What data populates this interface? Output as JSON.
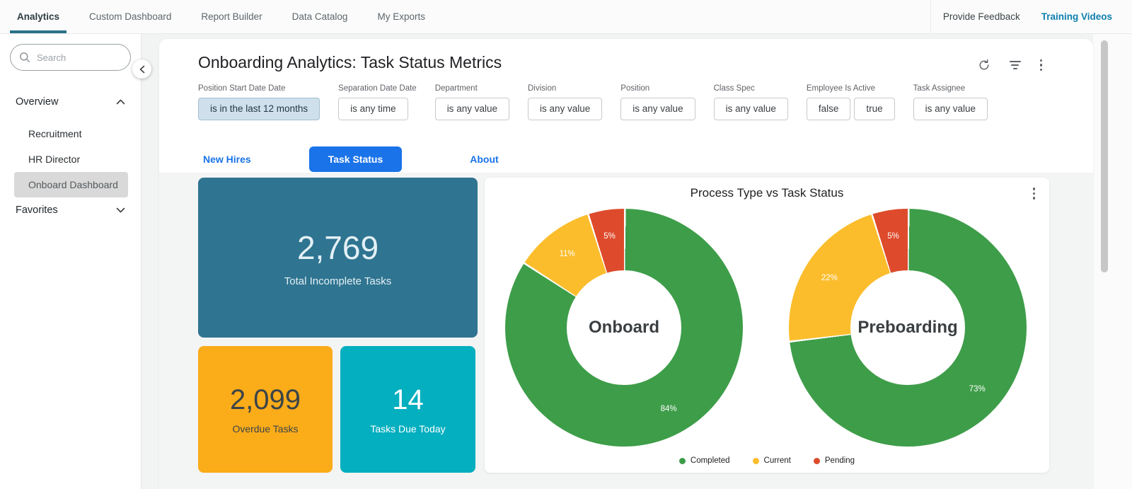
{
  "nav": {
    "tabs": [
      {
        "label": "Analytics",
        "active": true
      },
      {
        "label": "Custom Dashboard",
        "active": false
      },
      {
        "label": "Report Builder",
        "active": false
      },
      {
        "label": "Data Catalog",
        "active": false
      },
      {
        "label": "My Exports",
        "active": false
      }
    ],
    "provide_feedback": "Provide Feedback",
    "training_videos": "Training Videos"
  },
  "sidebar": {
    "search_placeholder": "Search",
    "overview_label": "Overview",
    "overview_items": [
      {
        "label": "Recruitment",
        "selected": false
      },
      {
        "label": "HR Director",
        "selected": false
      },
      {
        "label": "Onboard Dashboard",
        "selected": true
      }
    ],
    "favorites_label": "Favorites"
  },
  "main": {
    "title": "Onboarding Analytics: Task Status Metrics",
    "filters": [
      {
        "label": "Position Start Date Date",
        "value": "is in the last 12 months",
        "highlighted": true
      },
      {
        "label": "Separation Date Date",
        "value": "is any time",
        "highlighted": false
      },
      {
        "label": "Department",
        "value": "is any value",
        "highlighted": false
      },
      {
        "label": "Division",
        "value": "is any value",
        "highlighted": false
      },
      {
        "label": "Position",
        "value": "is any value",
        "highlighted": false
      },
      {
        "label": "Class Spec",
        "value": "is any value",
        "highlighted": false
      },
      {
        "label": "Employee Is Active",
        "values": [
          "false",
          "true"
        ],
        "highlighted": false
      },
      {
        "label": "Task Assignee",
        "value": "is any value",
        "highlighted": false
      }
    ],
    "view_tabs": [
      {
        "label": "New Hires",
        "active": false
      },
      {
        "label": "Task Status",
        "active": true
      },
      {
        "label": "About",
        "active": false
      }
    ],
    "metrics": [
      {
        "value": "2,769",
        "label": "Total Incomplete Tasks",
        "bg": "#2F7490",
        "text": "#E3F0F6"
      },
      {
        "value": "2,099",
        "label": "Overdue Tasks",
        "bg": "#FBAC19",
        "text": "#3C4448"
      },
      {
        "value": "14",
        "label": "Tasks Due Today",
        "bg": "#04AFBF",
        "text": "#FFFFFF"
      }
    ]
  },
  "chart_data": {
    "type": "pie",
    "title": "Process Type vs Task Status",
    "legend_position": "bottom",
    "legend": [
      {
        "label": "Completed",
        "color": "#3E9D49"
      },
      {
        "label": "Current",
        "color": "#FBBD2C"
      },
      {
        "label": "Pending",
        "color": "#DD4B2C"
      }
    ],
    "charts": [
      {
        "center_label": "Onboard",
        "slices": [
          {
            "name": "Completed",
            "value": 84
          },
          {
            "name": "Current",
            "value": 11
          },
          {
            "name": "Pending",
            "value": 5
          }
        ]
      },
      {
        "center_label": "Preboarding",
        "slices": [
          {
            "name": "Completed",
            "value": 73
          },
          {
            "name": "Current",
            "value": 22
          },
          {
            "name": "Pending",
            "value": 5
          }
        ]
      }
    ]
  },
  "icons": {
    "search": "search-icon",
    "collapse_sidebar": "chevron-left-icon",
    "overview_state": "chevron-up-icon",
    "favorites_state": "chevron-down-icon",
    "refresh": "refresh-icon",
    "filter": "filter-icon",
    "menu": "kebab-menu-icon"
  },
  "colors": {
    "accent_teal": "#2A7189",
    "link_blue": "#1A73E8",
    "training_link": "#0D7FAE",
    "chip_highlight_bg": "#CFE0EC"
  }
}
